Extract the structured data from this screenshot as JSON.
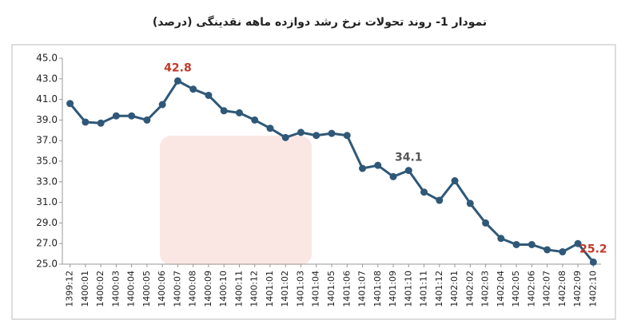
{
  "chart_data": {
    "type": "line",
    "title": "نمودار 1- روند تحولات نرخ رشد دوازده ماهه نقدینگی (درصد)",
    "categories": [
      "1399:12",
      "1400:01",
      "1400:02",
      "1400:03",
      "1400:04",
      "1400:05",
      "1400:06",
      "1400:07",
      "1400:08",
      "1400:09",
      "1400:10",
      "1400:11",
      "1400:12",
      "1401:01",
      "1401:02",
      "1401:03",
      "1401:04",
      "1401:05",
      "1401:06",
      "1401:07",
      "1401:08",
      "1401:09",
      "1401:10",
      "1401:11",
      "1401:12",
      "1402:01",
      "1402:02",
      "1402:03",
      "1402:04",
      "1402:05",
      "1402:06",
      "1402:07",
      "1402:08",
      "1402:09",
      "1402:10"
    ],
    "values": [
      40.6,
      38.8,
      38.7,
      39.4,
      39.4,
      39.0,
      40.5,
      42.8,
      42.0,
      41.4,
      39.9,
      39.7,
      39.0,
      38.2,
      37.3,
      37.8,
      37.5,
      37.7,
      37.5,
      34.3,
      34.6,
      33.5,
      34.1,
      32.0,
      31.2,
      33.1,
      30.9,
      29.0,
      27.5,
      26.9,
      26.9,
      26.4,
      26.2,
      27.0,
      25.2
    ],
    "value_labels": [
      null,
      null,
      null,
      null,
      null,
      null,
      null,
      "42.8",
      null,
      null,
      null,
      null,
      null,
      null,
      null,
      null,
      null,
      null,
      null,
      null,
      null,
      null,
      "34.1",
      null,
      null,
      null,
      null,
      null,
      null,
      null,
      null,
      null,
      null,
      null,
      "25.2"
    ],
    "value_label_colors": [
      null,
      null,
      null,
      null,
      null,
      null,
      null,
      "#c0392b",
      null,
      null,
      null,
      null,
      null,
      null,
      null,
      null,
      null,
      null,
      null,
      null,
      null,
      null,
      "#555555",
      null,
      null,
      null,
      null,
      null,
      null,
      null,
      null,
      null,
      null,
      null,
      "#c0392b"
    ],
    "color": "#2f5878",
    "ylim": [
      25,
      45
    ],
    "yticks": [
      {
        "value": 25,
        "label": "25.0"
      },
      {
        "value": 27,
        "label": "27.0"
      },
      {
        "value": 29,
        "label": "29.0"
      },
      {
        "value": 31,
        "label": "31.0"
      },
      {
        "value": 33,
        "label": "33.0"
      },
      {
        "value": 35,
        "label": "35.0"
      },
      {
        "value": 37,
        "label": "37.0"
      },
      {
        "value": 39,
        "label": "39.0"
      },
      {
        "value": 41,
        "label": "41.0"
      },
      {
        "value": 43,
        "label": "43.0"
      },
      {
        "value": 45,
        "label": "45.0"
      }
    ],
    "grid": false
  }
}
